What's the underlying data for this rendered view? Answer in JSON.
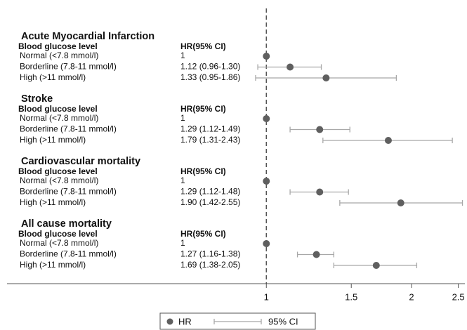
{
  "chart_data": {
    "type": "forest",
    "log_x": true,
    "xlim": [
      0.29,
      2.58
    ],
    "xticks": [
      1,
      1.5,
      2,
      2.5
    ],
    "reference": 1,
    "point_color": "#5f5f5f",
    "ci_color": "#a8a8a8",
    "legend": [
      "HR",
      "95% CI"
    ],
    "groups": [
      {
        "title": "Acute Myocardial Infarction",
        "header": [
          "Blood glucose level",
          "HR(95% CI)"
        ],
        "categories": [
          "Normal (<7.8 mmol/l)",
          "Borderline (7.8-11 mmol/l)",
          "High (>11 mmol/l)"
        ],
        "values": [
          1,
          1.12,
          1.33
        ],
        "ci_low": [
          null,
          0.96,
          0.95
        ],
        "ci_high": [
          null,
          1.3,
          1.86
        ],
        "value_labels": [
          "1",
          "1.12 (0.96-1.30)",
          "1.33 (0.95-1.86)"
        ]
      },
      {
        "title": "Stroke",
        "header": [
          "Blood glucose level",
          "HR(95% CI)"
        ],
        "categories": [
          "Normal (<7.8 mmol/l)",
          "Borderline (7.8-11 mmol/l)",
          "High (>11 mmol/l)"
        ],
        "values": [
          1,
          1.29,
          1.79
        ],
        "ci_low": [
          null,
          1.12,
          1.31
        ],
        "ci_high": [
          null,
          1.49,
          2.43
        ],
        "value_labels": [
          "1",
          "1.29 (1.12-1.49)",
          "1.79 (1.31-2.43)"
        ]
      },
      {
        "title": "Cardiovascular mortality",
        "header": [
          "Blood glucose level",
          "HR(95% CI)"
        ],
        "categories": [
          "Normal (<7.8 mmol/l)",
          "Borderline (7.8-11 mmol/l)",
          "High (>11 mmol/l)"
        ],
        "values": [
          1,
          1.29,
          1.9
        ],
        "ci_low": [
          null,
          1.12,
          1.42
        ],
        "ci_high": [
          null,
          1.48,
          2.55
        ],
        "value_labels": [
          "1",
          "1.29 (1.12-1.48)",
          "1.90 (1.42-2.55)"
        ]
      },
      {
        "title": "All cause mortality",
        "header": [
          "Blood glucose level",
          "HR(95% CI)"
        ],
        "categories": [
          "Normal (<7.8 mmol/l)",
          "Borderline (7.8-11 mmol/l)",
          "High (>11 mmol/l)"
        ],
        "values": [
          1,
          1.27,
          1.69
        ],
        "ci_low": [
          null,
          1.16,
          1.38
        ],
        "ci_high": [
          null,
          1.38,
          2.05
        ],
        "value_labels": [
          "1",
          "1.27 (1.16-1.38)",
          "1.69 (1.38-2.05)"
        ]
      }
    ]
  }
}
